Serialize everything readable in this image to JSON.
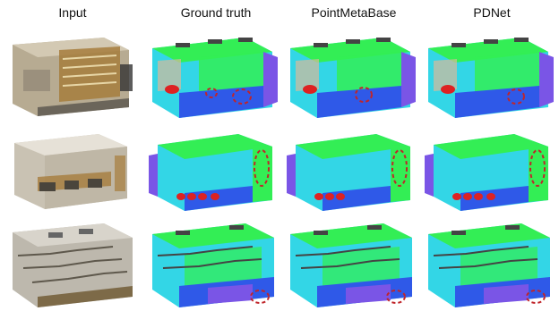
{
  "headers": {
    "input": "Input",
    "ground_truth": "Ground truth",
    "pointmetabase": "PointMetaBase",
    "pdnet": "PDNet"
  },
  "colors": {
    "input_beige": "#b9ad93",
    "input_brown": "#a67c3c",
    "seg_green": "#33ee55",
    "seg_cyan": "#33d6e6",
    "seg_blue": "#2f59e8",
    "seg_purple": "#7a55e6",
    "seg_red": "#dd2222",
    "highlight_ellipse": "#c0252a"
  }
}
